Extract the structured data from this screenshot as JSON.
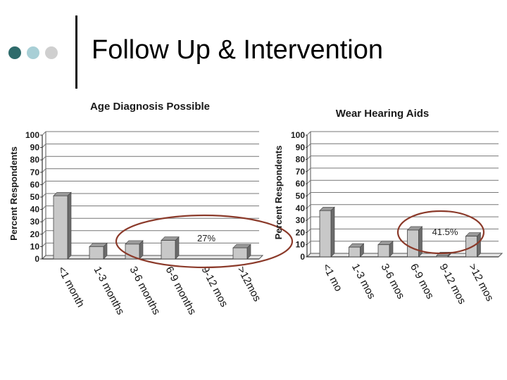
{
  "slide": {
    "title": "Follow Up & Intervention",
    "bullet_colors": [
      "#2e6b6b",
      "#a8cfd6",
      "#cfcfcf"
    ]
  },
  "colors": {
    "bar_face": "#c8c8c8",
    "bar_dark": "#6b6b6b",
    "bar_top": "#9a9a9a",
    "circle": "#8b3a2a",
    "axis_text": "#1a1a1a"
  },
  "chart_data": [
    {
      "type": "bar",
      "title": "Age Diagnosis Possible",
      "ylabel": "Percent Respondents",
      "xlabel": "",
      "ylim": [
        0,
        100
      ],
      "yticks": [
        0,
        10,
        20,
        30,
        40,
        50,
        60,
        70,
        80,
        90,
        100
      ],
      "grid": true,
      "categories": [
        "<1 month",
        "1-3 months",
        "3-6 months",
        "6-9 months",
        "9-12 mos",
        ">12mos"
      ],
      "values": [
        51,
        10,
        12,
        15,
        0,
        9
      ],
      "annotation": "27%"
    },
    {
      "type": "bar",
      "title": "Wear Hearing Aids",
      "ylabel": "Percent Respondents",
      "xlabel": "",
      "ylim": [
        0,
        100
      ],
      "yticks": [
        0,
        10,
        20,
        30,
        40,
        50,
        60,
        70,
        80,
        90,
        100
      ],
      "grid": true,
      "categories": [
        "<1 mo",
        "1-3 mos",
        "3-6 mos",
        "6-9 mos",
        "9-12 mos",
        ">12 mos"
      ],
      "values": [
        38,
        8,
        10,
        22,
        1,
        17
      ],
      "annotation": "41.5%"
    }
  ]
}
